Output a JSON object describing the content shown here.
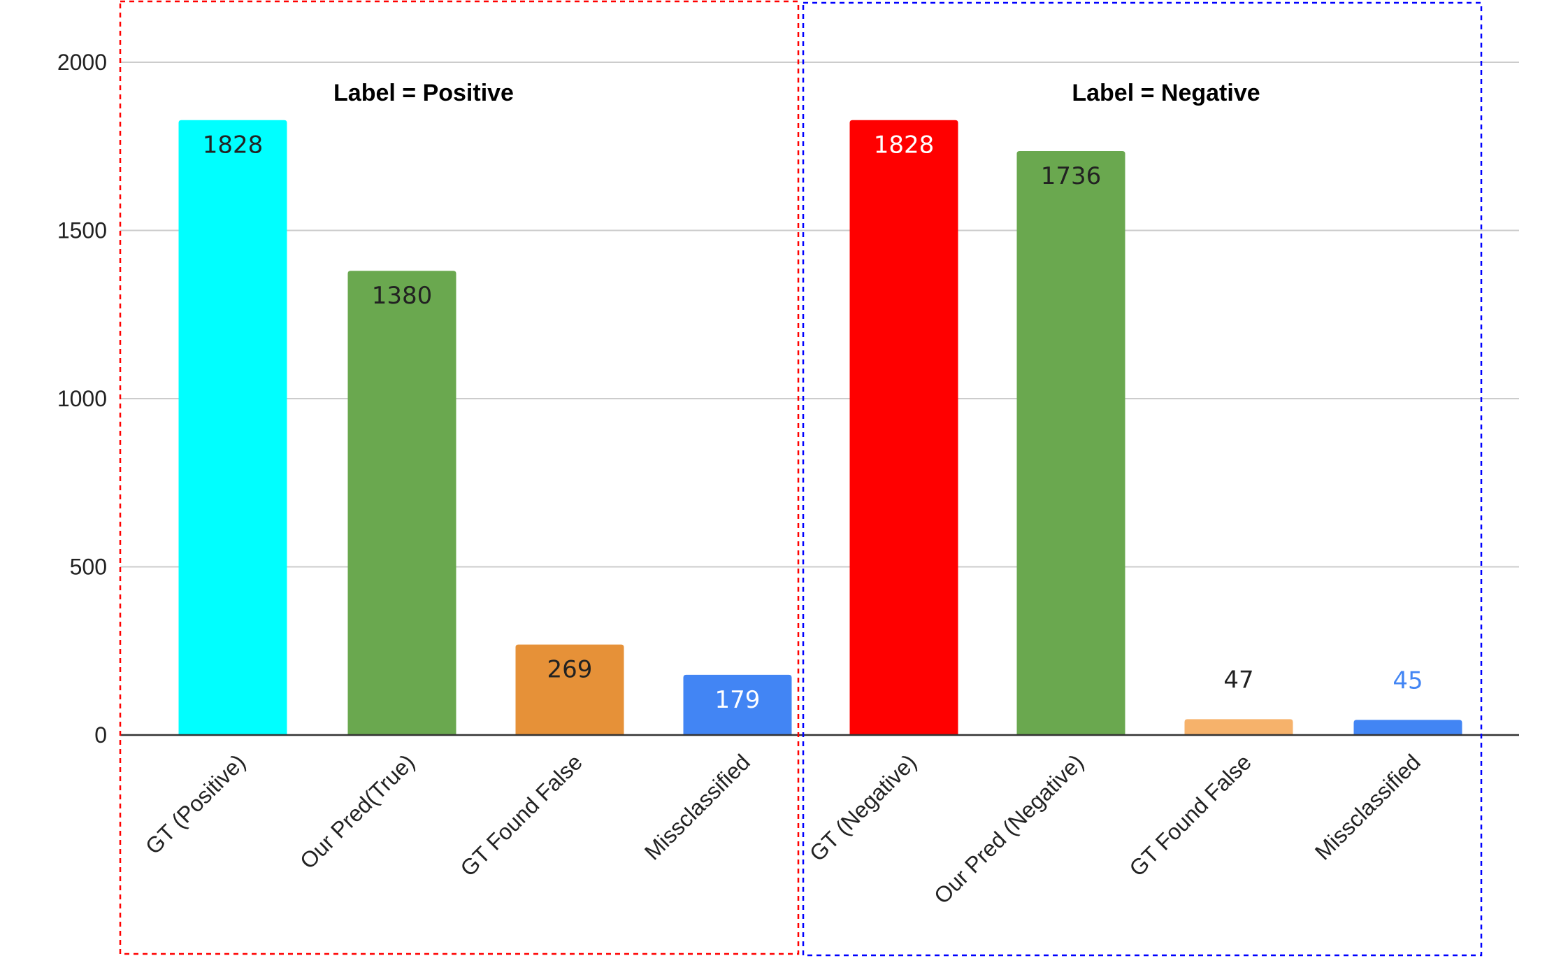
{
  "chart_data": {
    "type": "bar",
    "ylim": [
      0,
      2000
    ],
    "yticks": [
      0,
      500,
      1000,
      1500,
      2000
    ],
    "grid": true,
    "categories": [
      "GT (Positive)",
      "Our Pred(True)",
      "GT Found False",
      "Missclassified",
      "GT (Negative)",
      "Our Pred (Negative)",
      "GT Found False",
      "Missclassified"
    ],
    "values": [
      1828,
      1380,
      269,
      179,
      1828,
      1736,
      47,
      45
    ],
    "bar_colors": [
      "#00ffff",
      "#6aa84f",
      "#e69138",
      "#4285f4",
      "#ff0000",
      "#6aa84f",
      "#f6b26b",
      "#4285f4"
    ],
    "label_colors": [
      "#222222",
      "#222222",
      "#222222",
      "#ffffff",
      "#ffffff",
      "#222222",
      "#222222",
      "#4285f4"
    ],
    "label_position": [
      "inside",
      "inside",
      "inside",
      "inside",
      "inside",
      "inside",
      "above",
      "above"
    ],
    "groups": [
      {
        "title": "Label = Positive",
        "box_color": "#ff0000"
      },
      {
        "title": "Label = Negative",
        "box_color": "#0000ff"
      }
    ]
  }
}
